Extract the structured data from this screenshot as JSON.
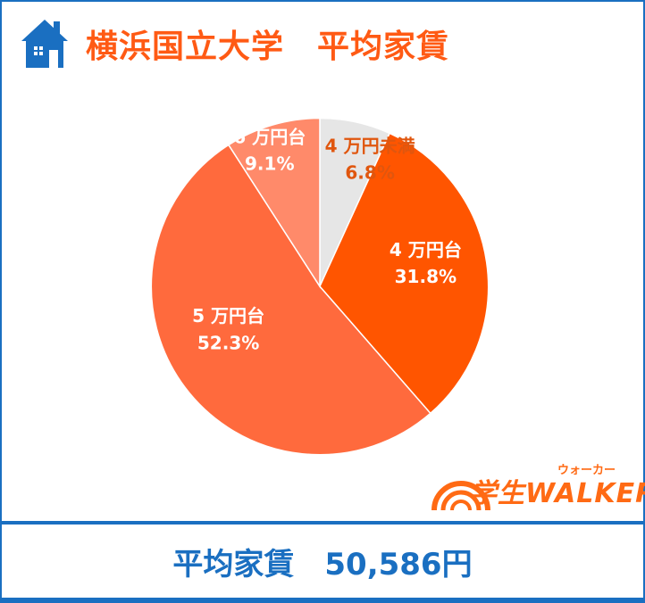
{
  "header": {
    "title": "横浜国立大学　平均家賃",
    "icon": "house-icon"
  },
  "summary": {
    "text": "平均家賃　50,586円"
  },
  "logo": {
    "main": "学生WALKER",
    "kana": "ウォーカー"
  },
  "chart_data": {
    "type": "pie",
    "title": "横浜国立大学　平均家賃",
    "slices": [
      {
        "label": "4 万円未満",
        "value": 6.8,
        "value_label": "6.8%",
        "color": "#e6e6e6"
      },
      {
        "label": "4 万円台",
        "value": 31.8,
        "value_label": "31.8%",
        "color": "#ff5500"
      },
      {
        "label": "5 万円台",
        "value": 52.3,
        "value_label": "52.3%",
        "color": "#ff6a3d"
      },
      {
        "label": "6 万円台",
        "value": 9.1,
        "value_label": "9.1%",
        "color": "#ff8a6a"
      }
    ],
    "label_colors": {
      "light_slice": "#e0560e",
      "default": "#ffffff"
    }
  }
}
